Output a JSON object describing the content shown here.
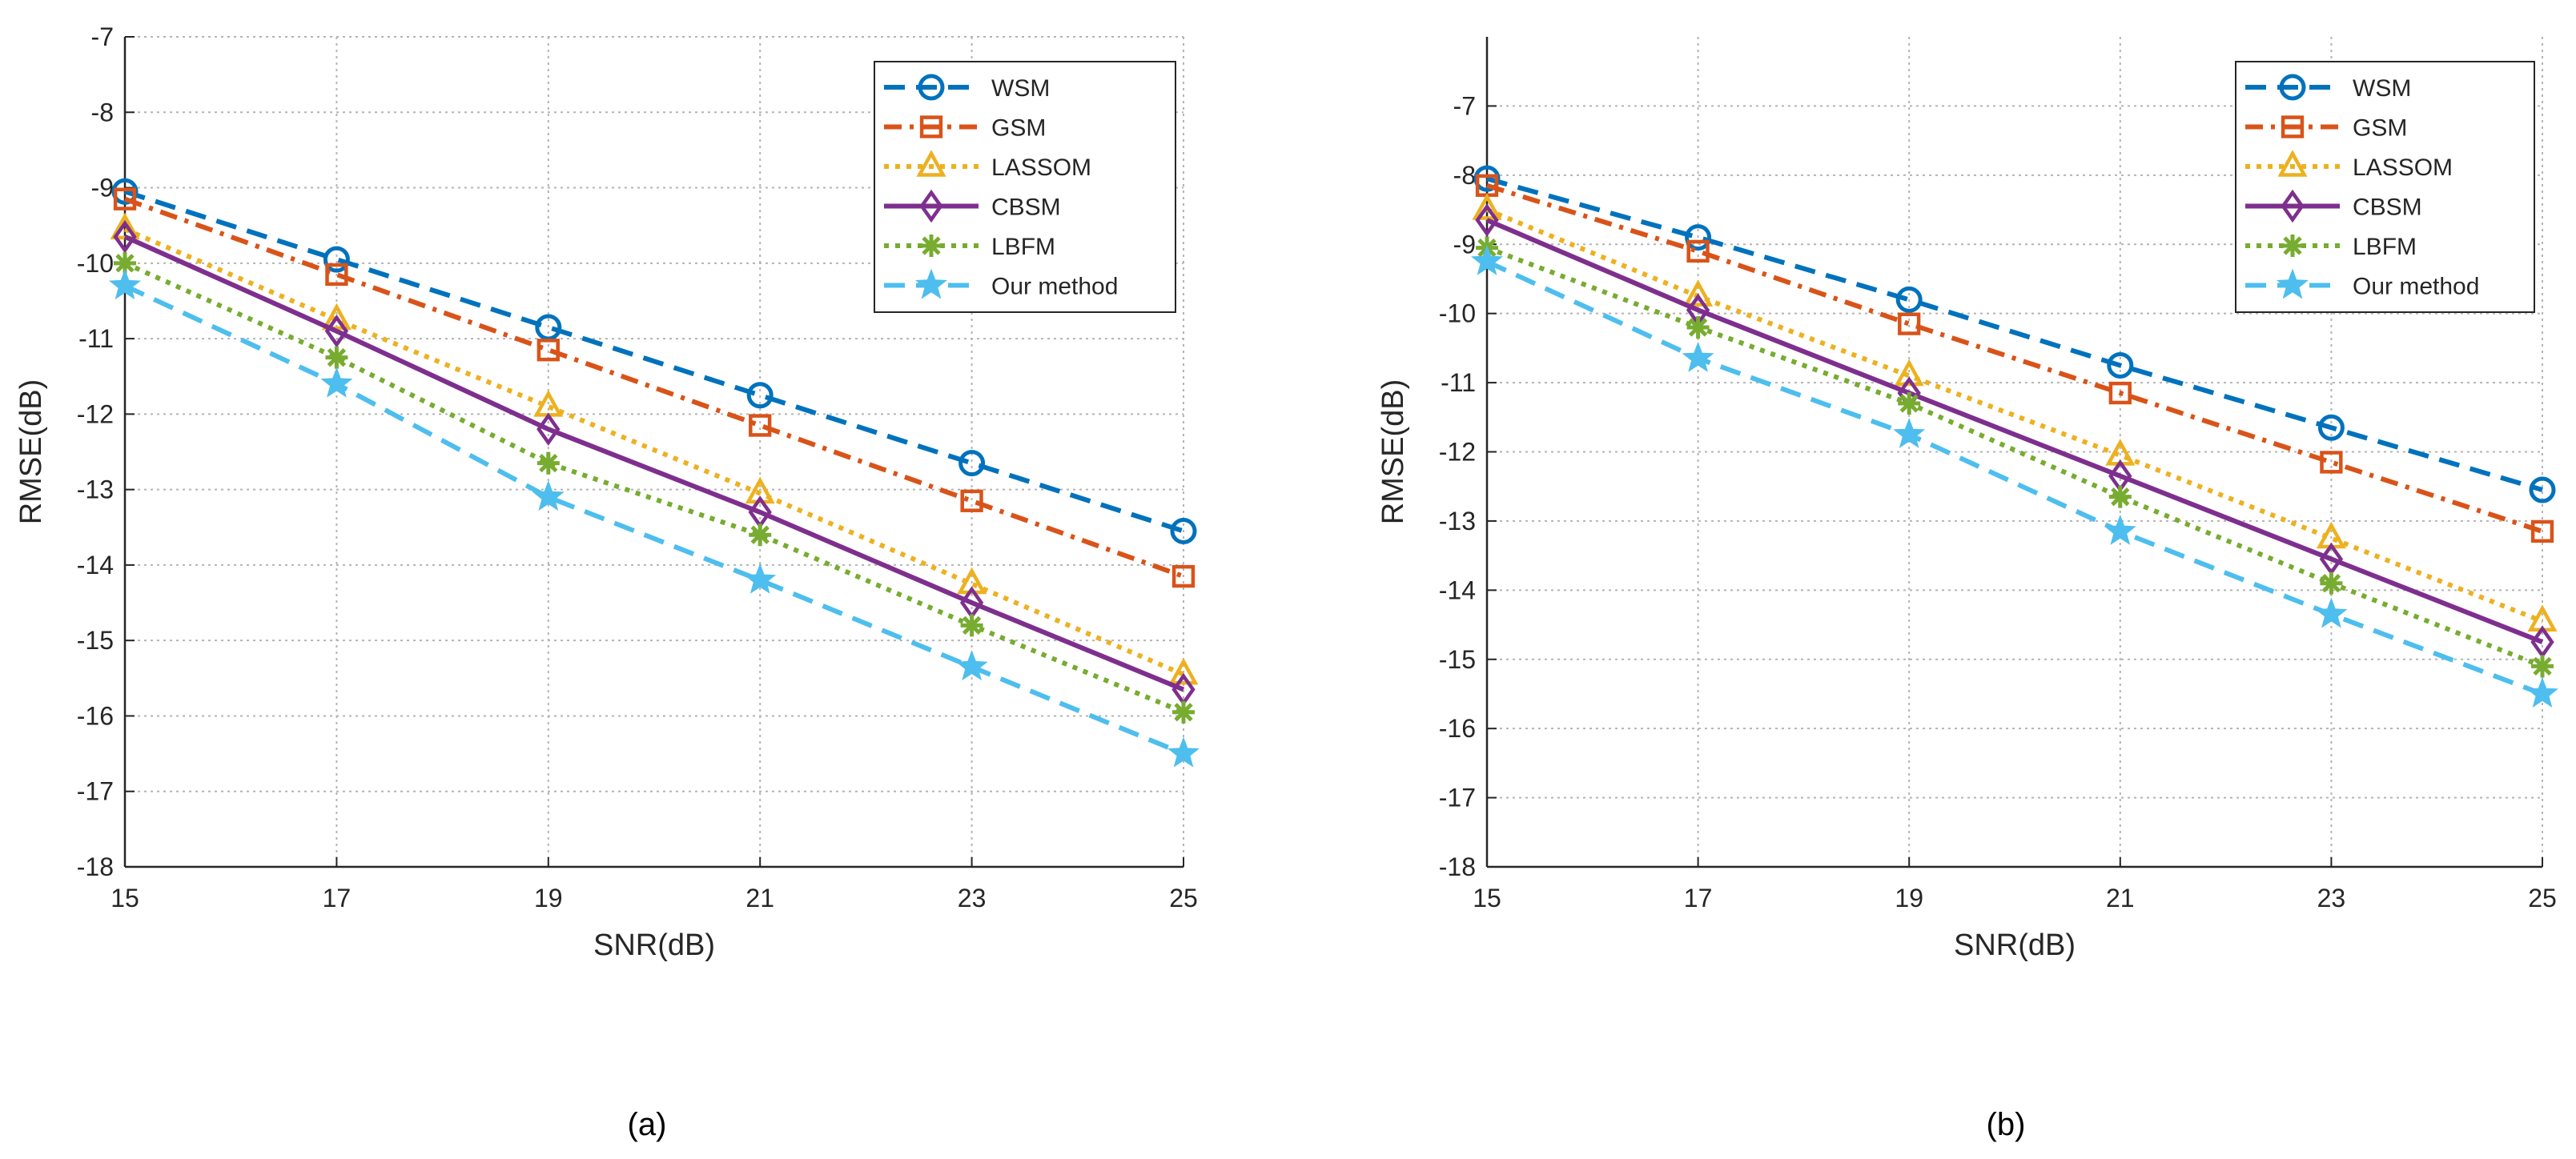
{
  "series_styles": [
    {
      "name": "WSM",
      "color": "#0072BD",
      "dash": "dashed",
      "marker": "circle"
    },
    {
      "name": "GSM",
      "color": "#D95319",
      "dash": "dashdot",
      "marker": "square"
    },
    {
      "name": "LASSOM",
      "color": "#EDB120",
      "dash": "dotted",
      "marker": "triangle"
    },
    {
      "name": "CBSM",
      "color": "#7E2F8E",
      "dash": "solid",
      "marker": "diamond"
    },
    {
      "name": "LBFM",
      "color": "#77AC30",
      "dash": "dotted",
      "marker": "asterisk"
    },
    {
      "name": "Our method",
      "color": "#4DBEEE",
      "dash": "dashed",
      "marker": "star"
    }
  ],
  "chart_data": [
    {
      "type": "line",
      "caption": "(a)",
      "xlabel": "SNR(dB)",
      "ylabel": "RMSE(dB)",
      "x": [
        15,
        17,
        19,
        21,
        23,
        25
      ],
      "xticks": [
        "15",
        "17",
        "19",
        "21",
        "23",
        "25"
      ],
      "yticks": [
        "-7",
        "-8",
        "-9",
        "-10",
        "-11",
        "-12",
        "-13",
        "-14",
        "-15",
        "-16",
        "-17",
        "-18"
      ],
      "xlim": [
        15,
        25
      ],
      "ylim": [
        -18,
        -7
      ],
      "grid": true,
      "legend": "top-right",
      "series": [
        {
          "name": "WSM",
          "values": [
            -9.05,
            -9.95,
            -10.85,
            -11.75,
            -12.65,
            -13.55
          ]
        },
        {
          "name": "GSM",
          "values": [
            -9.15,
            -10.15,
            -11.15,
            -12.15,
            -13.15,
            -14.15
          ]
        },
        {
          "name": "LASSOM",
          "values": [
            -9.55,
            -10.75,
            -11.9,
            -13.05,
            -14.25,
            -15.45
          ]
        },
        {
          "name": "CBSM",
          "values": [
            -9.65,
            -10.9,
            -12.2,
            -13.3,
            -14.5,
            -15.65
          ]
        },
        {
          "name": "LBFM",
          "values": [
            -10.0,
            -11.25,
            -12.65,
            -13.6,
            -14.8,
            -15.95
          ]
        },
        {
          "name": "Our method",
          "values": [
            -10.3,
            -11.6,
            -13.1,
            -14.2,
            -15.35,
            -16.5
          ]
        }
      ]
    },
    {
      "type": "line",
      "caption": "(b)",
      "xlabel": "SNR(dB)",
      "ylabel": "RMSE(dB)",
      "x": [
        15,
        17,
        19,
        21,
        23,
        25
      ],
      "xticks": [
        "15",
        "17",
        "19",
        "21",
        "23",
        "25"
      ],
      "yticks": [
        "-7",
        "-8",
        "-9",
        "-10",
        "-11",
        "-12",
        "-13",
        "-14",
        "-15",
        "-16",
        "-17",
        "-18"
      ],
      "xlim": [
        15,
        25
      ],
      "ylim": [
        -18,
        -6
      ],
      "grid": true,
      "legend": "top-right",
      "series": [
        {
          "name": "WSM",
          "values": [
            -8.05,
            -8.9,
            -9.8,
            -10.75,
            -11.65,
            -12.55
          ]
        },
        {
          "name": "GSM",
          "values": [
            -8.15,
            -9.1,
            -10.15,
            -11.15,
            -12.15,
            -13.15
          ]
        },
        {
          "name": "LASSOM",
          "values": [
            -8.5,
            -9.75,
            -10.9,
            -12.05,
            -13.25,
            -14.45
          ]
        },
        {
          "name": "CBSM",
          "values": [
            -8.65,
            -9.95,
            -11.15,
            -12.35,
            -13.55,
            -14.75
          ]
        },
        {
          "name": "LBFM",
          "values": [
            -9.05,
            -10.2,
            -11.3,
            -12.65,
            -13.9,
            -15.1
          ]
        },
        {
          "name": "Our method",
          "values": [
            -9.25,
            -10.65,
            -11.75,
            -13.15,
            -14.35,
            -15.5
          ]
        }
      ]
    }
  ]
}
